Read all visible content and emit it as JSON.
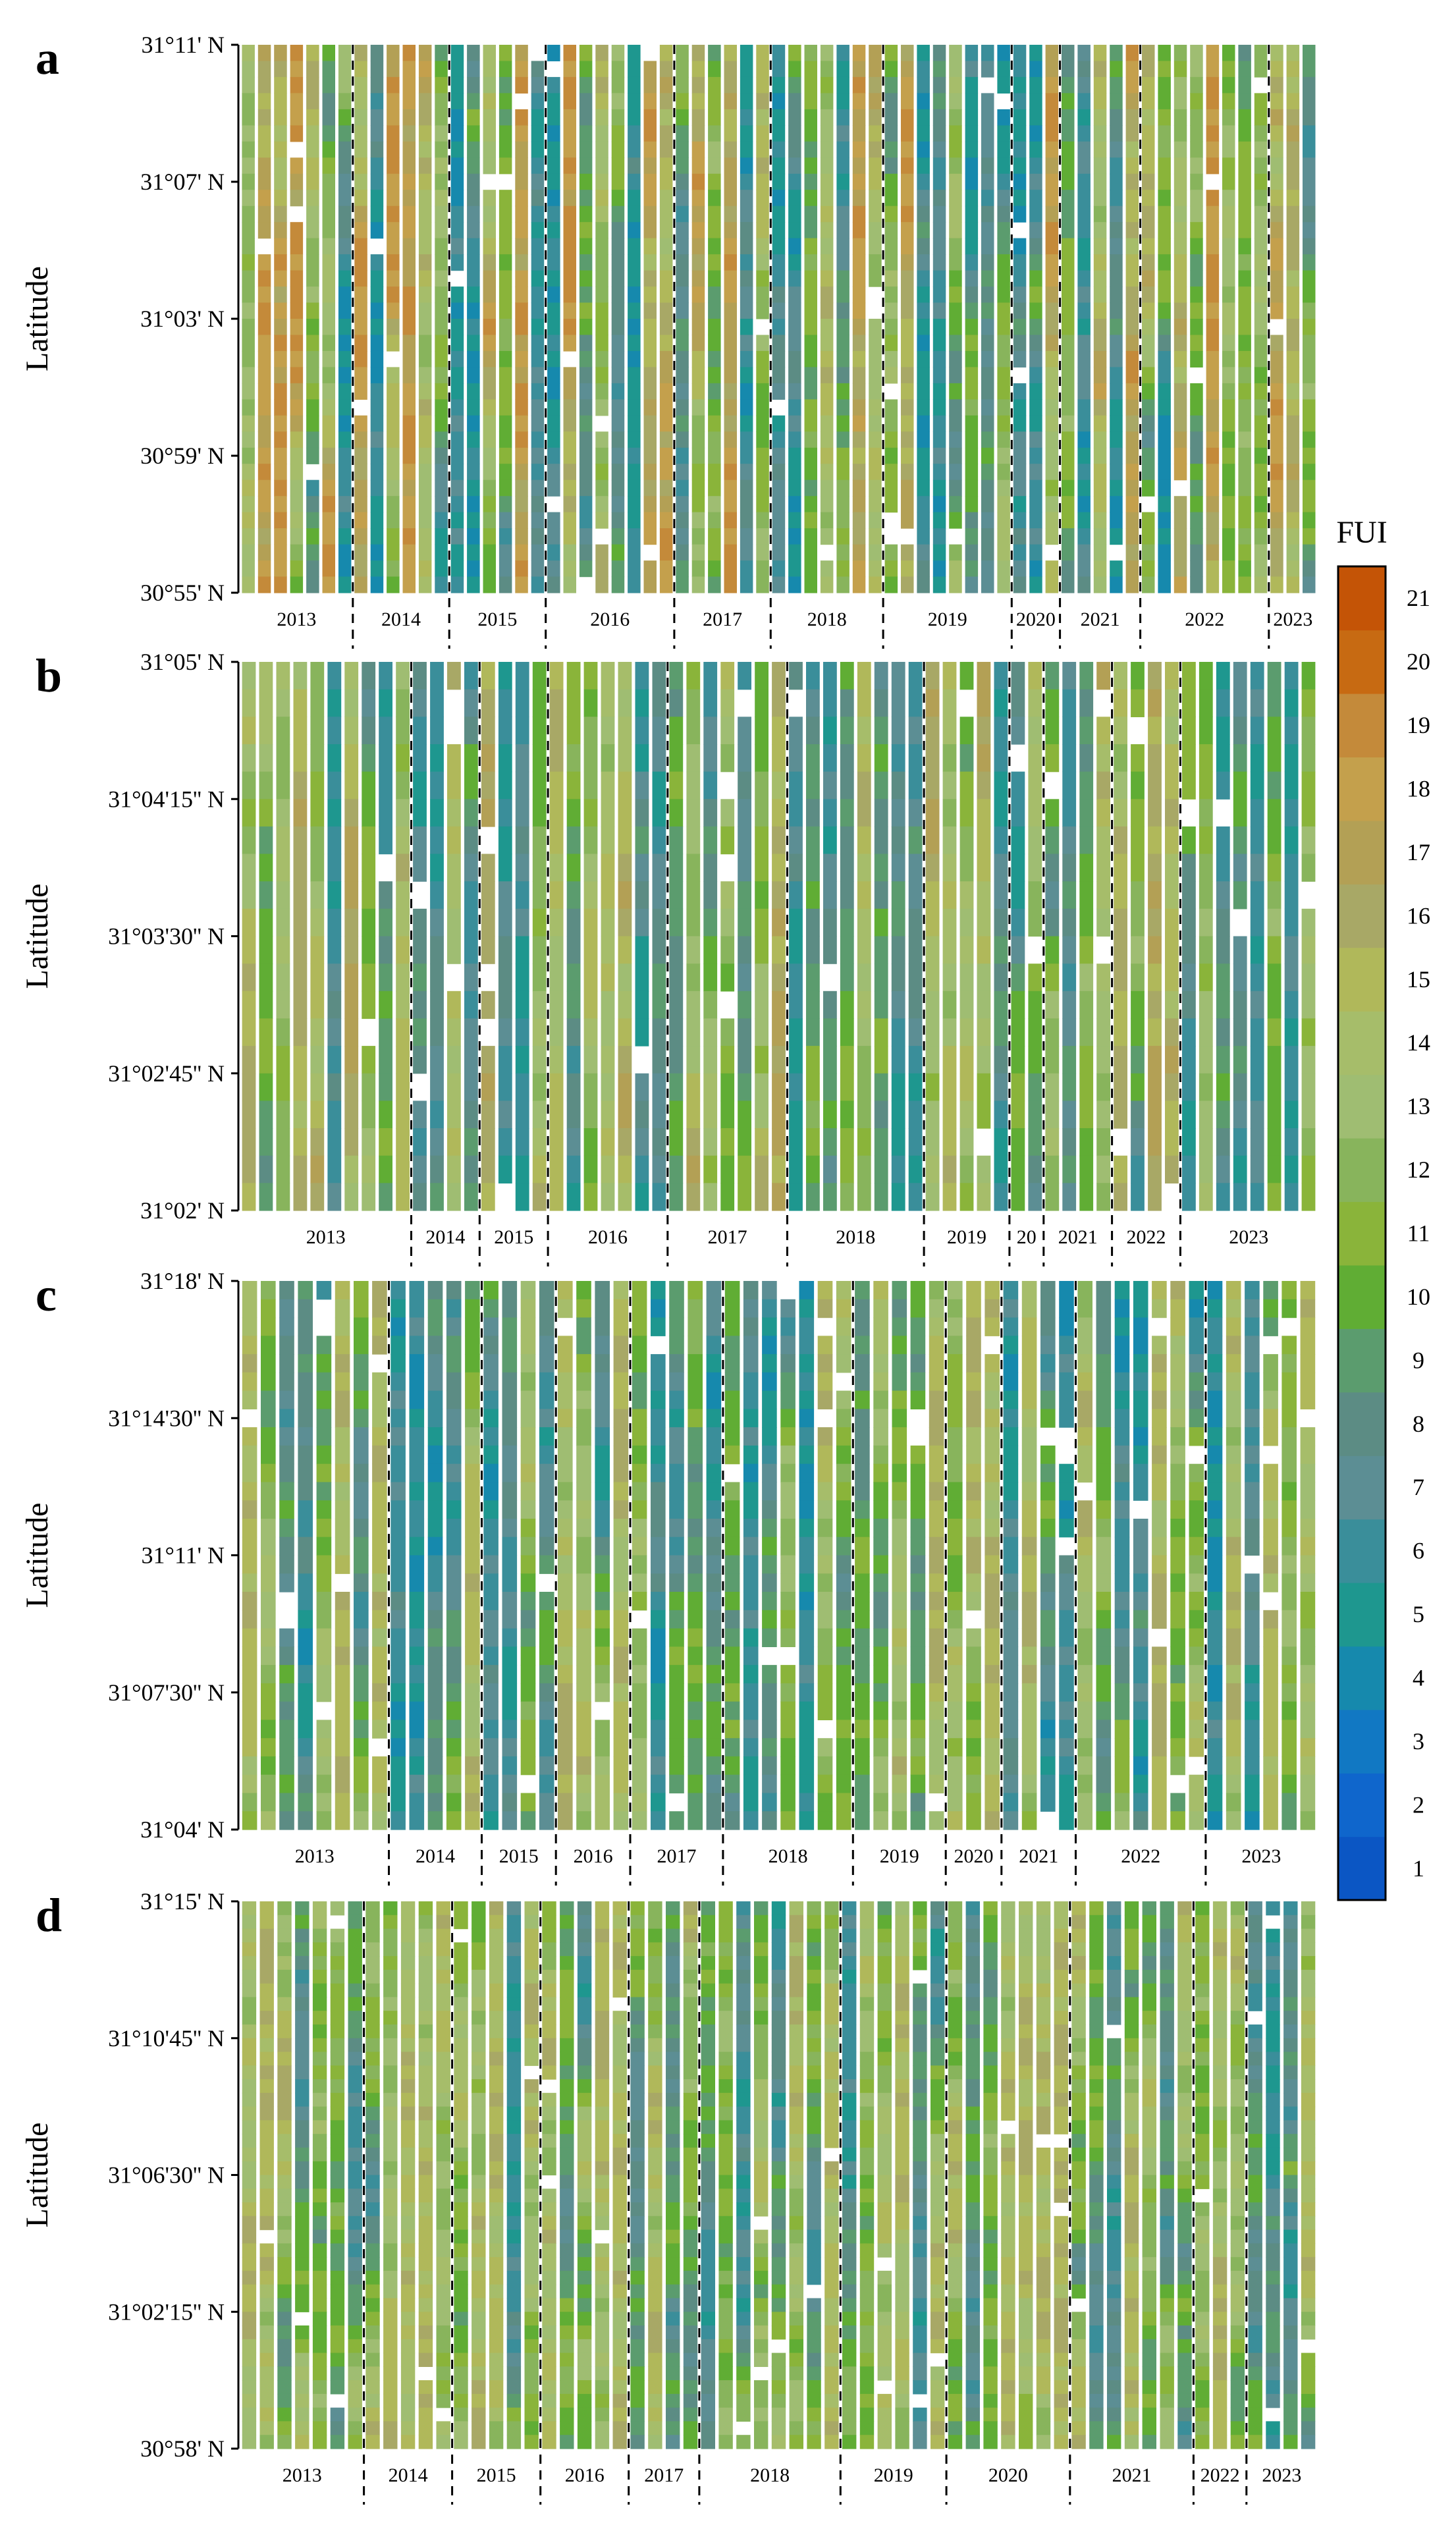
{
  "figure": {
    "colorbar_title": "FUI",
    "colorbar_ticks": [
      "1",
      "2",
      "3",
      "4",
      "5",
      "6",
      "7",
      "8",
      "9",
      "10",
      "11",
      "12",
      "13",
      "14",
      "15",
      "16",
      "17",
      "18",
      "19",
      "20",
      "21"
    ],
    "fui_palette": [
      "#0b56c4",
      "#0f66cc",
      "#1178c3",
      "#1689ad",
      "#1e978f",
      "#3a8e9a",
      "#5c8e94",
      "#5c8c84",
      "#5b9c6e",
      "#60ad34",
      "#8ab43a",
      "#88b45c",
      "#9fbd72",
      "#a6bd6a",
      "#b0b85a",
      "#a8a866",
      "#b3a055",
      "#c4a04c",
      "#c48a3a",
      "#c76a12",
      "#c45406"
    ]
  },
  "chart_data": [
    {
      "type": "heatmap",
      "panel_label": "a",
      "ylabel": "Latitude",
      "y_tick_labels": [
        "31°11' N",
        "31°07' N",
        "31°03' N",
        "30°59' N",
        "30°55' N"
      ],
      "years": [
        {
          "year": "2013",
          "columns": 7
        },
        {
          "year": "2014",
          "columns": 6
        },
        {
          "year": "2015",
          "columns": 6
        },
        {
          "year": "2016",
          "columns": 8
        },
        {
          "year": "2017",
          "columns": 6
        },
        {
          "year": "2018",
          "columns": 7
        },
        {
          "year": "2019",
          "columns": 8
        },
        {
          "year": "2020",
          "columns": 3
        },
        {
          "year": "2021",
          "columns": 5
        },
        {
          "year": "2022",
          "columns": 8
        },
        {
          "year": "2023",
          "columns": 3
        }
      ],
      "rows": 34,
      "value_range": [
        4,
        19
      ]
    },
    {
      "type": "heatmap",
      "panel_label": "b",
      "ylabel": "Latitude",
      "y_tick_labels": [
        "31°05' N",
        "31°04'15'' N",
        "31°03'30'' N",
        "31°02'45'' N",
        "31°02' N"
      ],
      "years": [
        {
          "year": "2013",
          "columns": 10
        },
        {
          "year": "2014",
          "columns": 4
        },
        {
          "year": "2015",
          "columns": 4
        },
        {
          "year": "2016",
          "columns": 7
        },
        {
          "year": "2017",
          "columns": 7
        },
        {
          "year": "2018",
          "columns": 8
        },
        {
          "year": "2019",
          "columns": 5
        },
        {
          "year": "20",
          "columns": 2
        },
        {
          "year": "2021",
          "columns": 4
        },
        {
          "year": "2022",
          "columns": 4
        },
        {
          "year": "2023",
          "columns": 8
        }
      ],
      "rows": 20,
      "value_range": [
        5,
        17
      ]
    },
    {
      "type": "heatmap",
      "panel_label": "c",
      "ylabel": "Latitude",
      "y_tick_labels": [
        "31°18' N",
        "31°14'30'' N",
        "31°11' N",
        "31°07'30'' N",
        "31°04' N"
      ],
      "years": [
        {
          "year": "2013",
          "columns": 8
        },
        {
          "year": "2014",
          "columns": 5
        },
        {
          "year": "2015",
          "columns": 4
        },
        {
          "year": "2016",
          "columns": 4
        },
        {
          "year": "2017",
          "columns": 5
        },
        {
          "year": "2018",
          "columns": 7
        },
        {
          "year": "2019",
          "columns": 5
        },
        {
          "year": "2020",
          "columns": 3
        },
        {
          "year": "2021",
          "columns": 4
        },
        {
          "year": "2022",
          "columns": 7
        },
        {
          "year": "2023",
          "columns": 6
        }
      ],
      "rows": 30,
      "value_range": [
        4,
        16
      ]
    },
    {
      "type": "heatmap",
      "panel_label": "d",
      "ylabel": "Latitude",
      "y_tick_labels": [
        "31°15' N",
        "31°10'45'' N",
        "31°06'30'' N",
        "31°02'15'' N",
        "30°58' N"
      ],
      "years": [
        {
          "year": "2013",
          "columns": 7
        },
        {
          "year": "2014",
          "columns": 5
        },
        {
          "year": "2015",
          "columns": 5
        },
        {
          "year": "2016",
          "columns": 5
        },
        {
          "year": "2017",
          "columns": 4
        },
        {
          "year": "2018",
          "columns": 8
        },
        {
          "year": "2019",
          "columns": 6
        },
        {
          "year": "2020",
          "columns": 7
        },
        {
          "year": "2021",
          "columns": 7
        },
        {
          "year": "2022",
          "columns": 3
        },
        {
          "year": "2023",
          "columns": 4
        }
      ],
      "rows": 40,
      "value_range": [
        5,
        16
      ]
    }
  ]
}
